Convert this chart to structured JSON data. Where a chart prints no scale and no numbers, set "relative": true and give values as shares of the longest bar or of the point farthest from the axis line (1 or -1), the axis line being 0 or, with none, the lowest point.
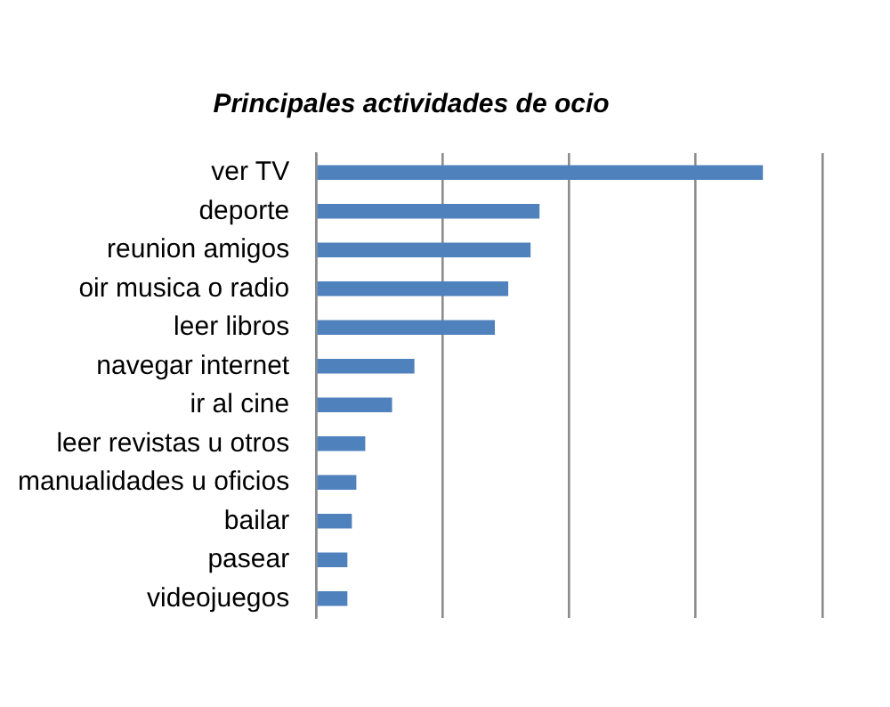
{
  "chart_data": {
    "type": "bar",
    "orientation": "horizontal",
    "relative": true,
    "title": "Principales actividades de ocio",
    "categories": [
      "ver TV",
      "deporte",
      "reunion amigos",
      "oir musica o radio",
      "leer libros",
      "navegar internet",
      "ir al cine",
      "leer revistas u otros",
      "manualidades u oficios",
      "bailar",
      "pasear",
      "videojuegos"
    ],
    "values": [
      1,
      0.5,
      0.48,
      0.43,
      0.4,
      0.22,
      0.17,
      0.11,
      0.09,
      0.08,
      0.07,
      0.07
    ],
    "color": "#4f81bd",
    "grid": "x",
    "legend": false
  }
}
